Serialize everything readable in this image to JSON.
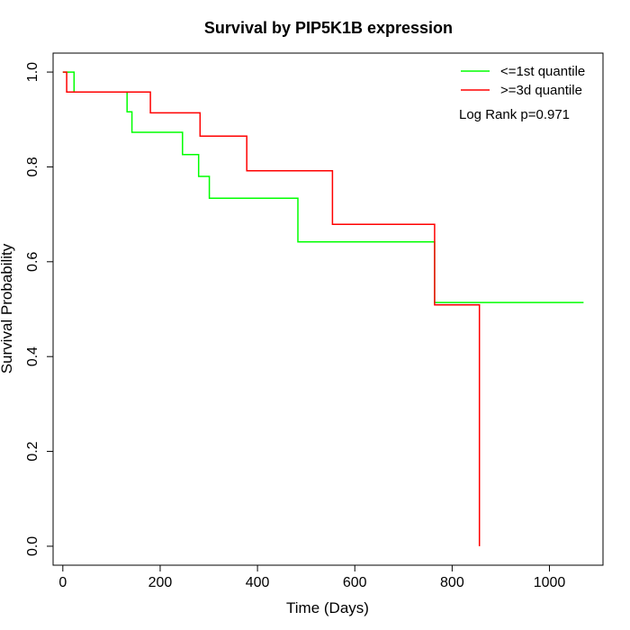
{
  "chart_data": {
    "type": "line",
    "title": "Survival by PIP5K1B expression",
    "xlabel": "Time (Days)",
    "ylabel": "Survival Probability",
    "xlim": [
      -20,
      1110
    ],
    "ylim": [
      -0.04,
      1.04
    ],
    "x_ticks": [
      0,
      200,
      400,
      600,
      800,
      1000
    ],
    "y_ticks": [
      0.0,
      0.2,
      0.4,
      0.6,
      0.8,
      1.0
    ],
    "x_tick_labels": [
      "0",
      "200",
      "400",
      "600",
      "800",
      "1000"
    ],
    "y_tick_labels": [
      "0.0",
      "0.2",
      "0.4",
      "0.6",
      "0.8",
      "1.0"
    ],
    "grid": false,
    "legend_position": "top-right",
    "annotation": "Log Rank p=0.971",
    "series": [
      {
        "name": "<=1st quantile",
        "color": "#00ff00",
        "x": [
          0,
          23,
          23,
          132,
          132,
          142,
          142,
          246,
          246,
          279,
          279,
          301,
          301,
          483,
          483,
          764,
          764,
          1070
        ],
        "y": [
          1.0,
          1.0,
          0.958,
          0.958,
          0.916,
          0.916,
          0.873,
          0.873,
          0.826,
          0.826,
          0.78,
          0.78,
          0.734,
          0.734,
          0.642,
          0.642,
          0.514,
          0.514
        ]
      },
      {
        "name": ">=3d quantile",
        "color": "#ff0000",
        "x": [
          0,
          8,
          8,
          180,
          180,
          282,
          282,
          378,
          378,
          554,
          554,
          764,
          764,
          856,
          856
        ],
        "y": [
          1.0,
          1.0,
          0.958,
          0.958,
          0.914,
          0.914,
          0.865,
          0.865,
          0.792,
          0.792,
          0.679,
          0.679,
          0.509,
          0.509,
          0.0
        ]
      }
    ]
  }
}
